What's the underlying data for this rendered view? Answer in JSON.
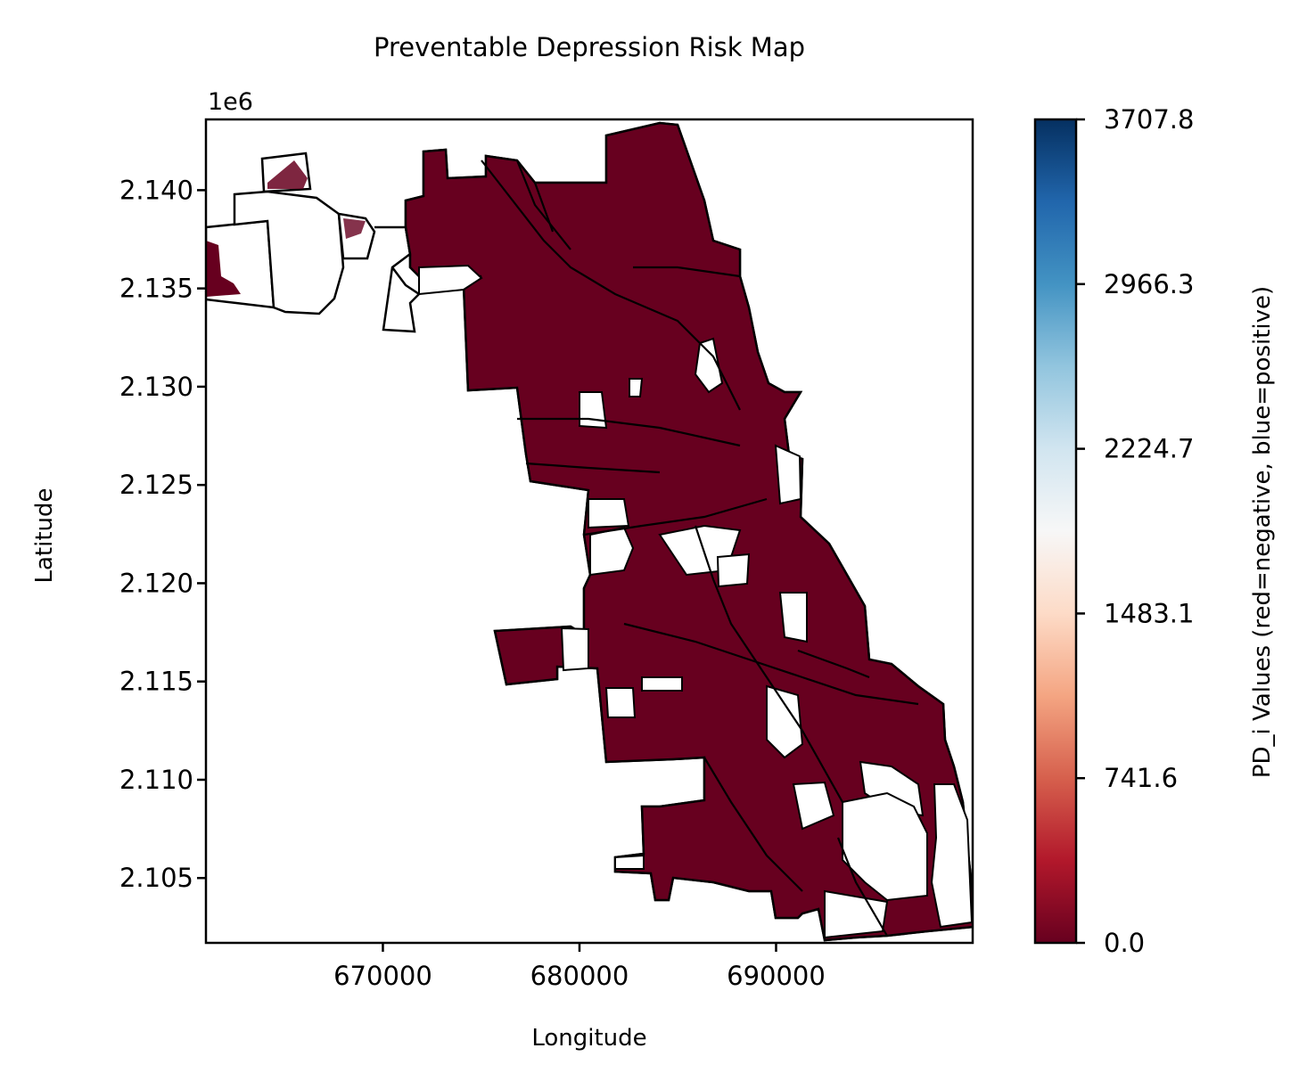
{
  "chart_data": {
    "type": "heatmap",
    "title": "Preventable Depression Risk Map",
    "xlabel": "Longitude",
    "ylabel": "Latitude",
    "y_offset_label": "1e6",
    "xlim": [
      661000,
      700000
    ],
    "ylim": [
      2101700,
      2143600
    ],
    "x_ticks": [
      {
        "value": 670000,
        "label": "670000"
      },
      {
        "value": 680000,
        "label": "680000"
      },
      {
        "value": 690000,
        "label": "690000"
      }
    ],
    "y_ticks": [
      {
        "value": 2105000,
        "label": "2.105"
      },
      {
        "value": 2110000,
        "label": "2.110"
      },
      {
        "value": 2115000,
        "label": "2.115"
      },
      {
        "value": 2120000,
        "label": "2.120"
      },
      {
        "value": 2125000,
        "label": "2.125"
      },
      {
        "value": 2130000,
        "label": "2.130"
      },
      {
        "value": 2135000,
        "label": "2.135"
      },
      {
        "value": 2140000,
        "label": "2.140"
      }
    ],
    "colorbar": {
      "label": "PD_i Values (red=negative, blue=positive)",
      "colormap": "RdBu",
      "range": [
        0.0,
        3707.8
      ],
      "ticks": [
        {
          "value": 0.0,
          "label": "0.0"
        },
        {
          "value": 741.6,
          "label": "741.6"
        },
        {
          "value": 1483.1,
          "label": "1483.1"
        },
        {
          "value": 2224.7,
          "label": "2224.7"
        },
        {
          "value": 2966.3,
          "label": "2966.3"
        },
        {
          "value": 3707.8,
          "label": "3707.8"
        }
      ]
    },
    "fill_color": "#67001f",
    "boundary_color": "#000000"
  }
}
